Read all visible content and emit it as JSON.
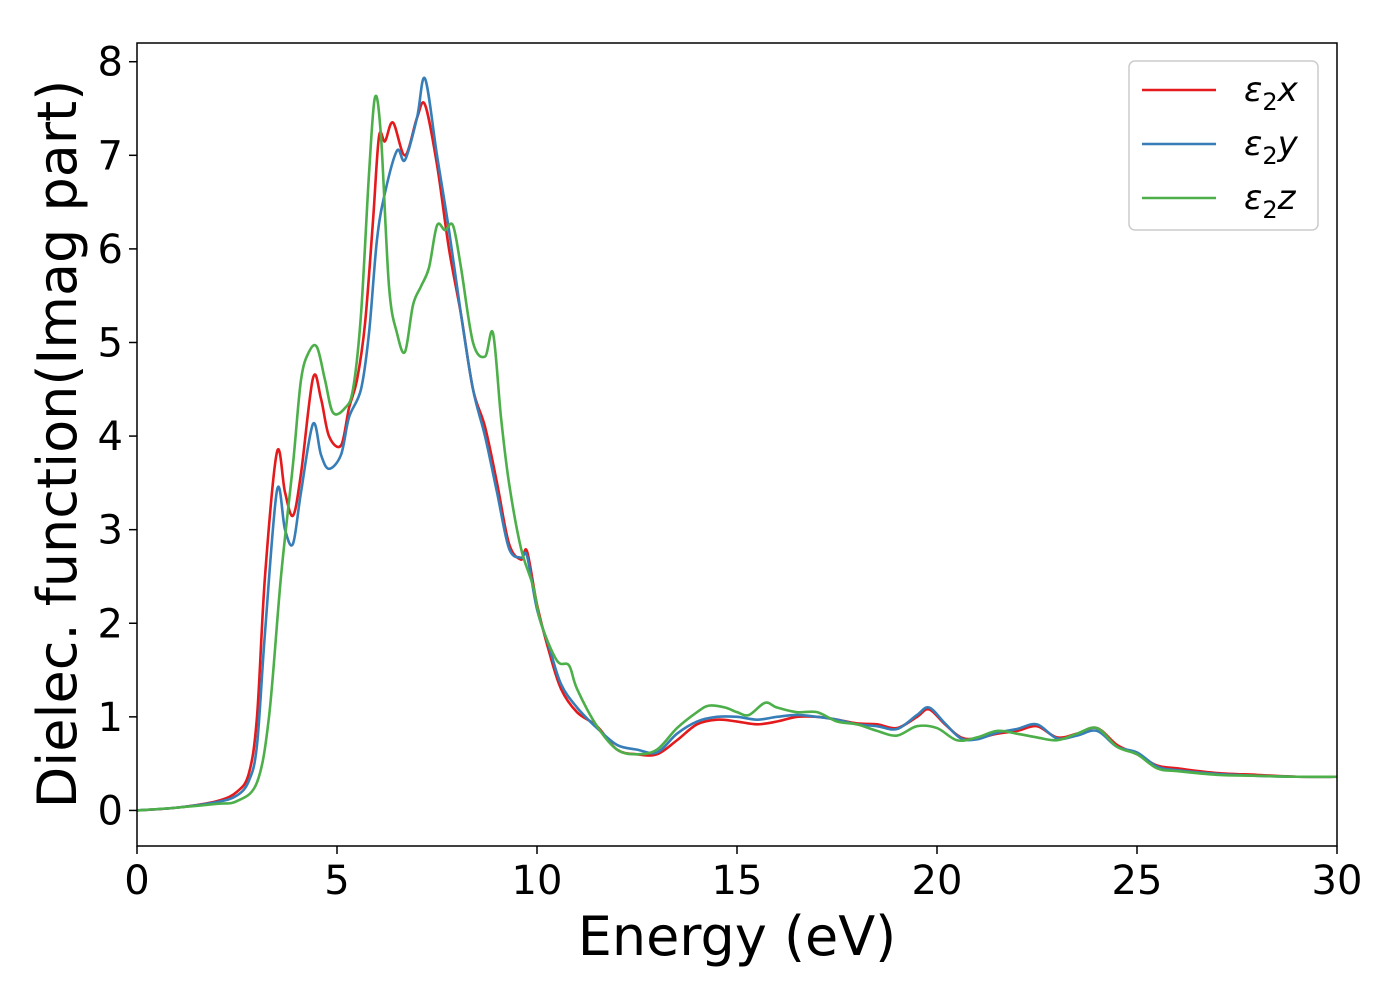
{
  "chart_data": {
    "type": "line",
    "xlabel": "Energy (eV)",
    "ylabel": "Dielec. function(Imag part)",
    "xlim": [
      0,
      30
    ],
    "ylim": [
      -0.38,
      8.2
    ],
    "xticks": [
      0,
      5,
      10,
      15,
      20,
      25,
      30
    ],
    "yticks": [
      0,
      1,
      2,
      3,
      4,
      5,
      6,
      7,
      8
    ],
    "grid": false,
    "legend_position": "top-right",
    "series": [
      {
        "name": "ε2x",
        "legend_base": "ε",
        "legend_sub": "2",
        "legend_suffix": "x",
        "color": "#e41a1c",
        "points": [
          [
            0,
            0
          ],
          [
            1,
            0.03
          ],
          [
            2,
            0.1
          ],
          [
            2.5,
            0.2
          ],
          [
            2.8,
            0.4
          ],
          [
            3.0,
            1.0
          ],
          [
            3.2,
            2.5
          ],
          [
            3.5,
            3.83
          ],
          [
            3.7,
            3.4
          ],
          [
            3.9,
            3.15
          ],
          [
            4.1,
            3.6
          ],
          [
            4.4,
            4.62
          ],
          [
            4.6,
            4.4
          ],
          [
            4.8,
            4.0
          ],
          [
            5.1,
            3.9
          ],
          [
            5.3,
            4.3
          ],
          [
            5.5,
            4.6
          ],
          [
            5.7,
            5.2
          ],
          [
            5.9,
            6.3
          ],
          [
            6.05,
            7.2
          ],
          [
            6.2,
            7.15
          ],
          [
            6.4,
            7.35
          ],
          [
            6.7,
            7.0
          ],
          [
            7.0,
            7.4
          ],
          [
            7.2,
            7.54
          ],
          [
            7.5,
            6.9
          ],
          [
            7.8,
            6.0
          ],
          [
            8.1,
            5.3
          ],
          [
            8.4,
            4.5
          ],
          [
            8.7,
            4.1
          ],
          [
            9.0,
            3.5
          ],
          [
            9.3,
            2.85
          ],
          [
            9.6,
            2.68
          ],
          [
            9.75,
            2.77
          ],
          [
            10.0,
            2.2
          ],
          [
            10.3,
            1.7
          ],
          [
            10.6,
            1.3
          ],
          [
            11.0,
            1.05
          ],
          [
            11.5,
            0.9
          ],
          [
            12.0,
            0.65
          ],
          [
            12.5,
            0.6
          ],
          [
            13.0,
            0.6
          ],
          [
            13.5,
            0.75
          ],
          [
            14.0,
            0.92
          ],
          [
            14.5,
            0.97
          ],
          [
            15.0,
            0.95
          ],
          [
            15.5,
            0.92
          ],
          [
            16.0,
            0.95
          ],
          [
            16.5,
            1.0
          ],
          [
            17.0,
            1.0
          ],
          [
            17.5,
            0.97
          ],
          [
            18.0,
            0.93
          ],
          [
            18.5,
            0.92
          ],
          [
            19.0,
            0.88
          ],
          [
            19.5,
            1.0
          ],
          [
            19.8,
            1.08
          ],
          [
            20.2,
            0.92
          ],
          [
            20.6,
            0.78
          ],
          [
            21.0,
            0.77
          ],
          [
            21.5,
            0.82
          ],
          [
            22.0,
            0.85
          ],
          [
            22.5,
            0.9
          ],
          [
            23.0,
            0.78
          ],
          [
            23.5,
            0.82
          ],
          [
            24.0,
            0.88
          ],
          [
            24.5,
            0.7
          ],
          [
            25.0,
            0.6
          ],
          [
            25.5,
            0.48
          ],
          [
            26.0,
            0.45
          ],
          [
            27.0,
            0.4
          ],
          [
            28.0,
            0.38
          ],
          [
            29.0,
            0.36
          ],
          [
            30.0,
            0.36
          ]
        ]
      },
      {
        "name": "ε2y",
        "legend_base": "ε",
        "legend_sub": "2",
        "legend_suffix": "y",
        "color": "#377eb8",
        "points": [
          [
            0,
            0
          ],
          [
            1,
            0.03
          ],
          [
            2,
            0.09
          ],
          [
            2.5,
            0.16
          ],
          [
            2.8,
            0.32
          ],
          [
            3.0,
            0.7
          ],
          [
            3.2,
            1.9
          ],
          [
            3.5,
            3.42
          ],
          [
            3.7,
            3.0
          ],
          [
            3.9,
            2.85
          ],
          [
            4.1,
            3.4
          ],
          [
            4.4,
            4.13
          ],
          [
            4.6,
            3.8
          ],
          [
            4.8,
            3.65
          ],
          [
            5.1,
            3.8
          ],
          [
            5.3,
            4.2
          ],
          [
            5.6,
            4.5
          ],
          [
            5.8,
            5.1
          ],
          [
            6.0,
            6.1
          ],
          [
            6.2,
            6.6
          ],
          [
            6.5,
            7.05
          ],
          [
            6.7,
            6.95
          ],
          [
            7.0,
            7.4
          ],
          [
            7.2,
            7.82
          ],
          [
            7.5,
            7.0
          ],
          [
            7.8,
            6.2
          ],
          [
            8.1,
            5.3
          ],
          [
            8.4,
            4.5
          ],
          [
            8.7,
            4.0
          ],
          [
            9.0,
            3.4
          ],
          [
            9.3,
            2.8
          ],
          [
            9.6,
            2.7
          ],
          [
            9.75,
            2.72
          ],
          [
            10.0,
            2.15
          ],
          [
            10.3,
            1.75
          ],
          [
            10.6,
            1.35
          ],
          [
            11.0,
            1.1
          ],
          [
            11.5,
            0.88
          ],
          [
            12.0,
            0.7
          ],
          [
            12.5,
            0.65
          ],
          [
            13.0,
            0.62
          ],
          [
            13.5,
            0.82
          ],
          [
            14.0,
            0.95
          ],
          [
            14.5,
            1.0
          ],
          [
            15.0,
            1.0
          ],
          [
            15.5,
            0.97
          ],
          [
            16.0,
            1.0
          ],
          [
            16.5,
            1.02
          ],
          [
            17.0,
            1.0
          ],
          [
            17.5,
            0.97
          ],
          [
            18.0,
            0.92
          ],
          [
            18.5,
            0.9
          ],
          [
            19.0,
            0.87
          ],
          [
            19.5,
            1.02
          ],
          [
            19.8,
            1.1
          ],
          [
            20.2,
            0.93
          ],
          [
            20.6,
            0.77
          ],
          [
            21.0,
            0.76
          ],
          [
            21.5,
            0.83
          ],
          [
            22.0,
            0.87
          ],
          [
            22.5,
            0.92
          ],
          [
            23.0,
            0.77
          ],
          [
            23.5,
            0.8
          ],
          [
            24.0,
            0.85
          ],
          [
            24.5,
            0.68
          ],
          [
            25.0,
            0.62
          ],
          [
            25.5,
            0.47
          ],
          [
            26.0,
            0.43
          ],
          [
            27.0,
            0.39
          ],
          [
            28.0,
            0.37
          ],
          [
            29.0,
            0.36
          ],
          [
            30.0,
            0.36
          ]
        ]
      },
      {
        "name": "ε2z",
        "legend_base": "ε",
        "legend_sub": "2",
        "legend_suffix": "z",
        "color": "#4daf4a",
        "points": [
          [
            0,
            0
          ],
          [
            1,
            0.03
          ],
          [
            2,
            0.07
          ],
          [
            2.5,
            0.1
          ],
          [
            3.0,
            0.3
          ],
          [
            3.3,
            1.0
          ],
          [
            3.6,
            2.5
          ],
          [
            3.9,
            3.7
          ],
          [
            4.1,
            4.6
          ],
          [
            4.3,
            4.9
          ],
          [
            4.5,
            4.95
          ],
          [
            4.7,
            4.6
          ],
          [
            4.9,
            4.25
          ],
          [
            5.2,
            4.3
          ],
          [
            5.4,
            4.5
          ],
          [
            5.6,
            5.3
          ],
          [
            5.8,
            6.8
          ],
          [
            5.95,
            7.62
          ],
          [
            6.1,
            7.2
          ],
          [
            6.3,
            5.6
          ],
          [
            6.5,
            5.1
          ],
          [
            6.7,
            4.9
          ],
          [
            6.9,
            5.4
          ],
          [
            7.1,
            5.6
          ],
          [
            7.3,
            5.8
          ],
          [
            7.5,
            6.25
          ],
          [
            7.7,
            6.2
          ],
          [
            7.9,
            6.25
          ],
          [
            8.1,
            5.8
          ],
          [
            8.4,
            5.0
          ],
          [
            8.7,
            4.85
          ],
          [
            8.9,
            5.1
          ],
          [
            9.1,
            4.2
          ],
          [
            9.3,
            3.5
          ],
          [
            9.6,
            2.8
          ],
          [
            9.9,
            2.4
          ],
          [
            10.1,
            2.0
          ],
          [
            10.5,
            1.6
          ],
          [
            10.8,
            1.55
          ],
          [
            11.0,
            1.3
          ],
          [
            11.5,
            0.9
          ],
          [
            12.0,
            0.65
          ],
          [
            12.5,
            0.6
          ],
          [
            13.0,
            0.65
          ],
          [
            13.5,
            0.88
          ],
          [
            14.0,
            1.05
          ],
          [
            14.3,
            1.12
          ],
          [
            14.7,
            1.1
          ],
          [
            15.0,
            1.05
          ],
          [
            15.3,
            1.02
          ],
          [
            15.7,
            1.15
          ],
          [
            16.0,
            1.1
          ],
          [
            16.5,
            1.05
          ],
          [
            17.0,
            1.05
          ],
          [
            17.5,
            0.95
          ],
          [
            18.0,
            0.92
          ],
          [
            18.5,
            0.85
          ],
          [
            19.0,
            0.8
          ],
          [
            19.5,
            0.9
          ],
          [
            20.0,
            0.88
          ],
          [
            20.5,
            0.75
          ],
          [
            21.0,
            0.78
          ],
          [
            21.5,
            0.85
          ],
          [
            22.0,
            0.82
          ],
          [
            22.5,
            0.78
          ],
          [
            23.0,
            0.75
          ],
          [
            23.5,
            0.82
          ],
          [
            24.0,
            0.88
          ],
          [
            24.5,
            0.68
          ],
          [
            25.0,
            0.6
          ],
          [
            25.5,
            0.45
          ],
          [
            26.0,
            0.42
          ],
          [
            27.0,
            0.38
          ],
          [
            28.0,
            0.37
          ],
          [
            29.0,
            0.36
          ],
          [
            30.0,
            0.36
          ]
        ]
      }
    ]
  }
}
